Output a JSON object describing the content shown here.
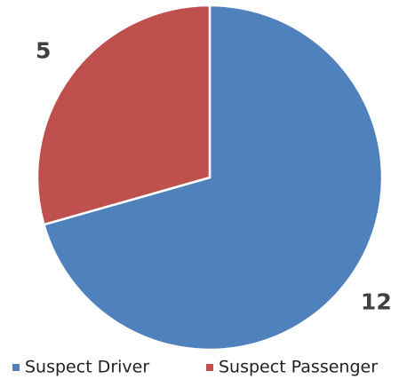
{
  "chart_data": {
    "type": "pie",
    "categories": [
      "Suspect Driver",
      "Suspect Passenger"
    ],
    "values": [
      12,
      5
    ],
    "colors": [
      "#4f81bd",
      "#c0504d"
    ],
    "legend": "bottom"
  }
}
